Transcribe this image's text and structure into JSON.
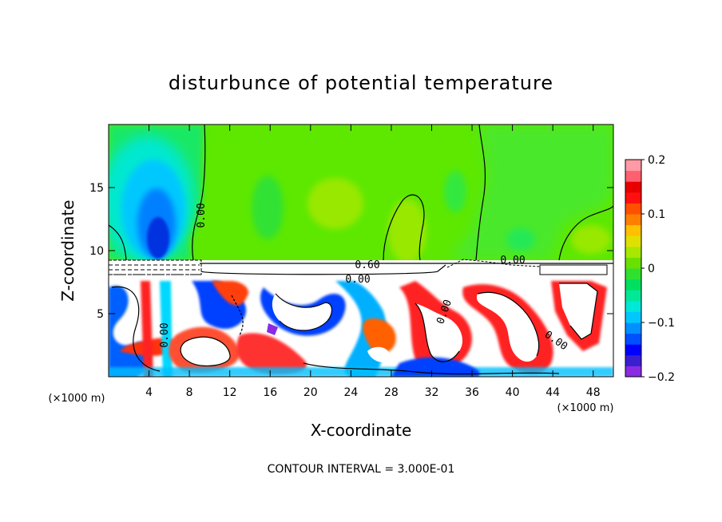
{
  "chart_data": {
    "type": "heatmap",
    "title": "disturbunce of potential temperature",
    "xlabel": "X-coordinate",
    "ylabel": "Z-coordinate",
    "x_unit": "(×1000 m)",
    "x_unit_right": "(×1000 m)",
    "xlim": [
      0,
      50
    ],
    "ylim": [
      0,
      20
    ],
    "x_ticks": [
      4,
      8,
      12,
      16,
      20,
      24,
      28,
      32,
      36,
      40,
      44,
      48
    ],
    "y_ticks": [
      5,
      10,
      15
    ],
    "colorbar": {
      "range": [
        -0.2,
        0.2
      ],
      "ticks": [
        0.2,
        0.1,
        0,
        -0.1,
        -0.2
      ],
      "tick_labels": [
        "0.2",
        "0.1",
        "0",
        "−0.1",
        "−0.2"
      ],
      "colors": [
        "#8a2be2",
        "#3a1fd0",
        "#0000ff",
        "#0050ff",
        "#0090ff",
        "#00c8ff",
        "#00e8d8",
        "#00e898",
        "#00e060",
        "#30e030",
        "#6ae000",
        "#a8e800",
        "#e0e000",
        "#ffc000",
        "#ff8000",
        "#ff5000",
        "#ff1010",
        "#e80000",
        "#ff6070",
        "#ff9aa6"
      ]
    },
    "contour_labels": [
      "0.00",
      "0.00",
      "0.60",
      "0.00",
      "0.00",
      "0.00",
      "0.00"
    ],
    "background_anomaly": 0.0,
    "features": [
      {
        "name": "cold core",
        "x": 5,
        "z": 11.5,
        "value": -0.13
      },
      {
        "name": "warm column",
        "x": 30,
        "z": 12,
        "value": 0.05
      },
      {
        "name": "warm column",
        "x": 46,
        "z": 10.5,
        "value": 0.05
      },
      {
        "name": "warm bubble",
        "x": 18,
        "z": 14,
        "value": 0.04
      }
    ],
    "footer": "CONTOUR INTERVAL = 3.000E-01"
  }
}
